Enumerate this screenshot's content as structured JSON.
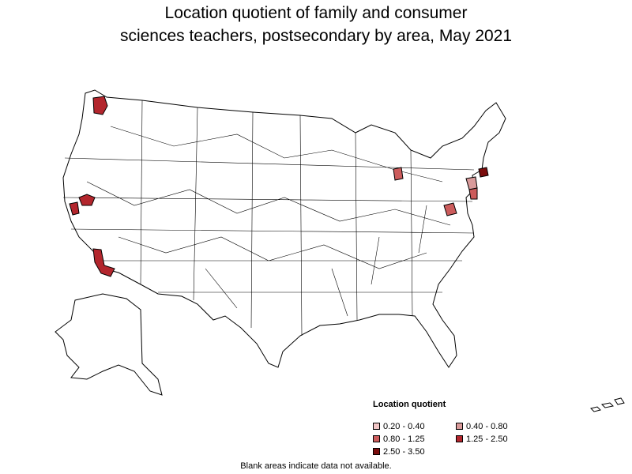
{
  "title": {
    "line1": "Location quotient of family and consumer",
    "line2": "sciences teachers, postsecondary by area, May 2021"
  },
  "legend": {
    "title": "Location quotient",
    "items": [
      {
        "label": "0.20 - 0.40",
        "color": "#f2c6c6"
      },
      {
        "label": "0.40 - 0.80",
        "color": "#d99a9a"
      },
      {
        "label": "0.80 - 1.25",
        "color": "#cc5c5c"
      },
      {
        "label": "1.25 - 2.50",
        "color": "#b3262d"
      },
      {
        "label": "2.50 - 3.50",
        "color": "#7a0c0c"
      }
    ]
  },
  "footnote": "Blank areas indicate data not available.",
  "map": {
    "highlighted_areas": [
      {
        "region": "Seattle, WA",
        "class": "1.25 - 2.50"
      },
      {
        "region": "Sacramento, CA",
        "class": "1.25 - 2.50"
      },
      {
        "region": "San Francisco Bay Area, CA",
        "class": "1.25 - 2.50"
      },
      {
        "region": "Los Angeles, CA",
        "class": "1.25 - 2.50"
      },
      {
        "region": "Lansing, MI",
        "class": "0.80 - 1.25"
      },
      {
        "region": "Boston, MA",
        "class": "2.50 - 3.50"
      },
      {
        "region": "New York, NY",
        "class": "0.40 - 0.80"
      },
      {
        "region": "Philadelphia, PA",
        "class": "0.80 - 1.25"
      },
      {
        "region": "Washington, DC",
        "class": "0.80 - 1.25"
      }
    ]
  }
}
